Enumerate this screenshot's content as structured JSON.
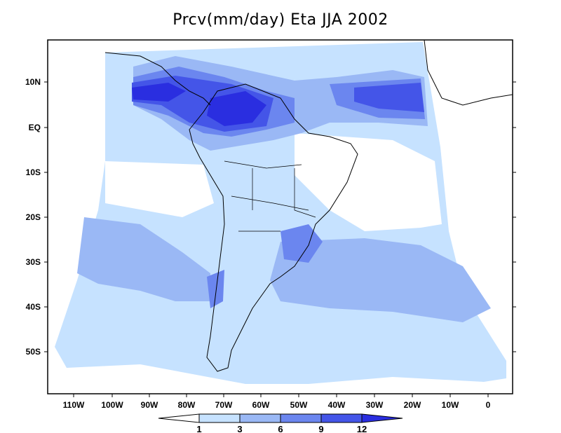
{
  "title": "Prcv(mm/day) Eta JJA 2002",
  "map": {
    "lon_ticks": [
      "110W",
      "100W",
      "90W",
      "80W",
      "70W",
      "60W",
      "50W",
      "40W",
      "30W",
      "20W",
      "10W",
      "0"
    ],
    "lat_ticks": [
      "10N",
      "EQ",
      "10S",
      "20S",
      "30S",
      "40S",
      "50S"
    ],
    "region": "South America"
  },
  "colorbar": {
    "levels": [
      "1",
      "3",
      "6",
      "9",
      "12"
    ],
    "colors": [
      "#ffffff",
      "#c6e2ff",
      "#9ab8f5",
      "#6b86ef",
      "#4455e8",
      "#2a2ee0"
    ]
  }
}
